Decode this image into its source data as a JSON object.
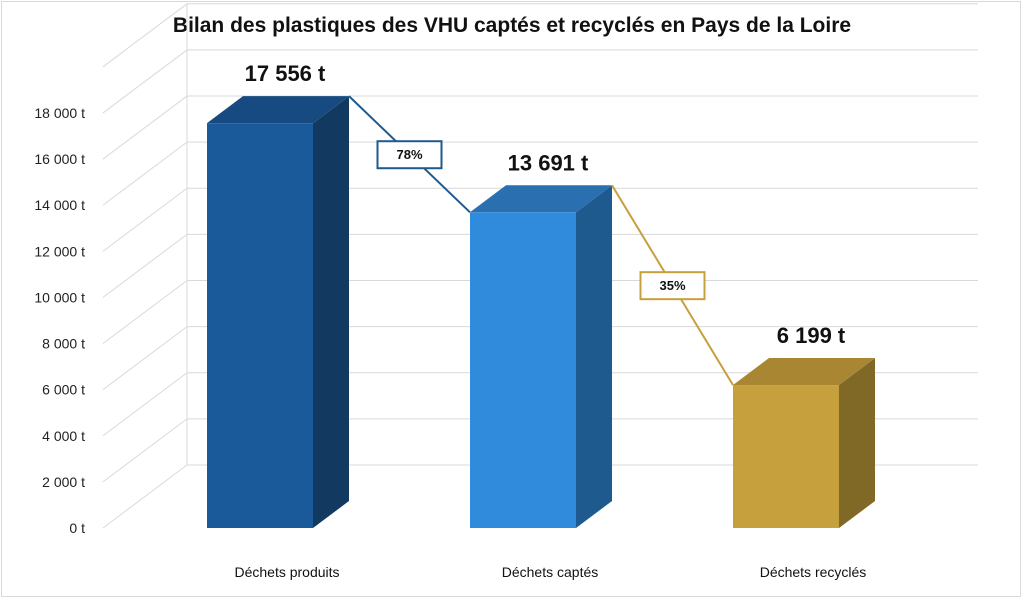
{
  "chart_data": {
    "type": "bar",
    "title": "Bilan des plastiques des VHU captés et recyclés en Pays de la Loire",
    "categories": [
      "Déchets produits",
      "Déchets captés",
      "Déchets recyclés"
    ],
    "values": [
      17556,
      13691,
      6199
    ],
    "value_labels": [
      "17 556 t",
      "13 691 t",
      "6 199 t"
    ],
    "ylim": [
      0,
      20000
    ],
    "yticks": [
      0,
      2000,
      4000,
      6000,
      8000,
      10000,
      12000,
      14000,
      16000,
      18000,
      20000
    ],
    "ytick_labels": [
      "0 t",
      "2 000 t",
      "4 000 t",
      "6 000 t",
      "8 000 t",
      "10 000 t",
      "12 000 t",
      "14 000 t",
      "16 000 t",
      "18 000 t",
      ""
    ],
    "grid": true,
    "colors": {
      "bars": [
        "#1b5a9a",
        "#318bdd",
        "#c6a03d"
      ],
      "tops": [
        "#174a80",
        "#2a6faf",
        "#a98632"
      ],
      "sides": [
        "#123a61",
        "#1f5a8f",
        "#806827"
      ]
    },
    "ratios": [
      {
        "label": "78%",
        "color": "#1f5a8f"
      },
      {
        "label": "35%",
        "color": "#c6a03d"
      }
    ]
  }
}
